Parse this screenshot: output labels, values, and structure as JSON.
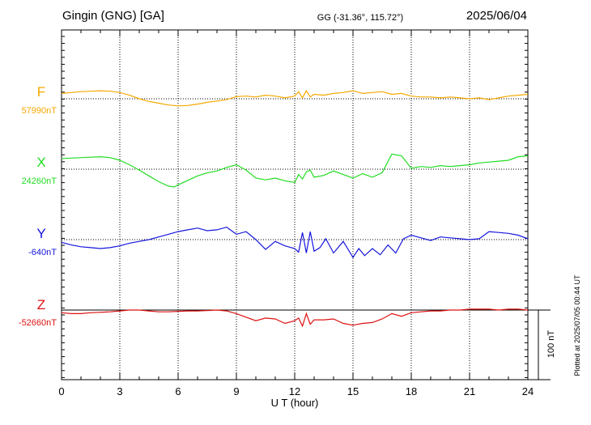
{
  "header": {
    "title": "Gingin (GNG)  [GA]",
    "coords": "GG (-31.36°, 115.72°)",
    "date": "2025/06/04"
  },
  "side_note": "Plotted at 2025/07/05 00:44 UT",
  "scale_label": "100 nT",
  "chart_data": {
    "type": "line",
    "xlabel": "U T (hour)",
    "xlim": [
      0,
      24
    ],
    "xticks": [
      "0",
      "3",
      "6",
      "9",
      "12",
      "15",
      "18",
      "21",
      "24"
    ],
    "grid": true,
    "scale_bar_nT": 100,
    "series": [
      {
        "name": "F",
        "baseline": "57990nT",
        "color": "#f5a800",
        "t": [
          0,
          0.5,
          1,
          1.5,
          2,
          2.5,
          3,
          3.5,
          4,
          4.5,
          5,
          5.5,
          6,
          6.5,
          7,
          7.5,
          8,
          8.5,
          9,
          9.5,
          10,
          10.5,
          11,
          11.5,
          12,
          12.2,
          12.4,
          12.6,
          12.8,
          13,
          13.5,
          14,
          14.5,
          15,
          15.5,
          16,
          16.5,
          17,
          17.5,
          18,
          18.5,
          19,
          19.5,
          20,
          20.5,
          21,
          21.5,
          22,
          22.5,
          23,
          23.5,
          24
        ],
        "v": [
          12,
          14,
          16,
          17,
          18,
          17,
          14,
          8,
          0,
          -6,
          -10,
          -14,
          -16,
          -15,
          -12,
          -8,
          -5,
          -2,
          5,
          6,
          4,
          8,
          6,
          2,
          6,
          16,
          2,
          18,
          4,
          10,
          8,
          12,
          14,
          18,
          12,
          14,
          16,
          10,
          12,
          6,
          4,
          4,
          2,
          4,
          2,
          0,
          2,
          -2,
          2,
          6,
          8,
          10
        ]
      },
      {
        "name": "X",
        "baseline": "24260nT",
        "color": "#22dd22",
        "t": [
          0,
          0.5,
          1,
          1.5,
          2,
          2.5,
          3,
          3.5,
          4,
          4.5,
          5,
          5.5,
          5.8,
          6,
          6.5,
          7,
          7.5,
          8,
          8.5,
          9,
          9.5,
          10,
          10.5,
          11,
          11.5,
          12,
          12.2,
          12.4,
          12.6,
          12.8,
          13,
          13.5,
          14,
          14.5,
          15,
          15.5,
          16,
          16.5,
          17,
          17.5,
          18,
          18.5,
          19,
          19.5,
          20,
          20.5,
          21,
          21.5,
          22,
          22.5,
          23,
          23.5,
          24
        ],
        "v": [
          24,
          25,
          26,
          27,
          28,
          26,
          20,
          10,
          -2,
          -15,
          -28,
          -38,
          -40,
          -35,
          -25,
          -15,
          -8,
          -4,
          4,
          10,
          -2,
          -20,
          -24,
          -20,
          -26,
          -30,
          -12,
          -22,
          -6,
          -2,
          -18,
          -14,
          -4,
          -12,
          -20,
          -10,
          -18,
          -8,
          34,
          30,
          2,
          6,
          4,
          8,
          6,
          8,
          10,
          14,
          16,
          18,
          20,
          28,
          30
        ]
      },
      {
        "name": "Y",
        "baseline": "-640nT",
        "color": "#1515dd",
        "t": [
          0,
          0.5,
          1,
          1.5,
          2,
          2.5,
          3,
          3.5,
          4,
          4.5,
          5,
          5.5,
          6,
          6.5,
          7,
          7.5,
          8,
          8.5,
          9,
          9.5,
          10,
          10.5,
          11,
          11.5,
          12,
          12.2,
          12.4,
          12.6,
          12.8,
          13,
          13.3,
          13.6,
          14,
          14.5,
          15,
          15.3,
          15.6,
          16,
          16.4,
          16.8,
          17.2,
          17.6,
          18,
          18.5,
          19,
          19.5,
          20,
          20.5,
          21,
          21.5,
          22,
          22.5,
          23,
          23.5,
          24
        ],
        "v": [
          -6,
          -12,
          -16,
          -18,
          -20,
          -18,
          -14,
          -8,
          -4,
          0,
          6,
          12,
          18,
          22,
          26,
          20,
          22,
          28,
          12,
          18,
          0,
          -22,
          -4,
          -14,
          -20,
          -28,
          16,
          -30,
          18,
          -26,
          -18,
          2,
          -30,
          -4,
          -40,
          -20,
          -36,
          -20,
          -34,
          -12,
          -30,
          2,
          10,
          4,
          -2,
          6,
          4,
          2,
          0,
          2,
          18,
          16,
          14,
          10,
          2
        ]
      },
      {
        "name": "Z",
        "baseline": "-52660nT",
        "color": "#dd1111",
        "t": [
          0,
          0.5,
          1,
          1.5,
          2,
          2.5,
          3,
          3.5,
          4,
          4.5,
          5,
          5.5,
          6,
          6.5,
          7,
          7.5,
          8,
          8.5,
          9,
          9.5,
          10,
          10.5,
          11,
          11.5,
          12,
          12.2,
          12.4,
          12.6,
          12.8,
          13,
          13.5,
          14,
          14.5,
          15,
          15.5,
          16,
          16.5,
          17,
          17.5,
          18,
          18.5,
          19,
          19.5,
          20,
          20.5,
          21,
          21.5,
          22,
          22.5,
          23,
          23.5,
          24
        ],
        "v": [
          -6,
          -8,
          -8,
          -6,
          -5,
          -4,
          -2,
          0,
          0,
          -2,
          -4,
          -4,
          -3,
          -2,
          -2,
          -1,
          0,
          -2,
          -8,
          -16,
          -24,
          -18,
          -20,
          -30,
          -24,
          -18,
          -36,
          -8,
          -32,
          -22,
          -22,
          -20,
          -30,
          -34,
          -30,
          -28,
          -20,
          -8,
          -14,
          -6,
          -4,
          -2,
          -2,
          0,
          0,
          2,
          2,
          2,
          0,
          2,
          2,
          0,
          -2
        ]
      }
    ]
  }
}
